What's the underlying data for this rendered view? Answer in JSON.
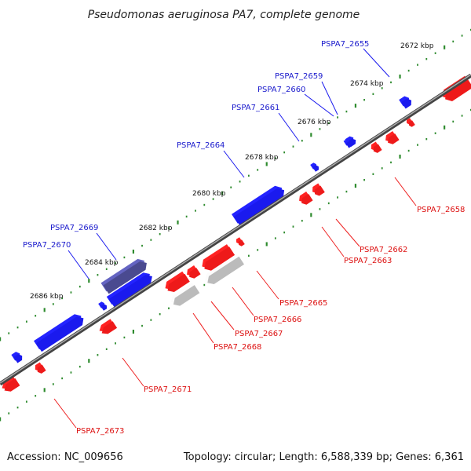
{
  "title": "Pseudomonas aeruginosa PA7, complete genome",
  "footer": {
    "accession": "Accession: NC_009656",
    "summary": "Topology: circular; Length: 6,588,339 bp; Genes: 6,361"
  },
  "colors": {
    "backbone": "#7a7a7a",
    "tick_dots": "#2e8b2e",
    "forward_gene": "#1a1aee",
    "forward_label": "#1a1acc",
    "reverse_gene": "#ee1a1a",
    "reverse_label": "#dd1111",
    "highlight_forward": "#4a4a90",
    "highlight_reverse": "#bbbbbb"
  },
  "scale_ticks": [
    "2672 kbp",
    "2674 kbp",
    "2676 kbp",
    "2678 kbp",
    "2680 kbp",
    "2682 kbp",
    "2684 kbp",
    "2686 kbp"
  ],
  "genes_forward": [
    {
      "label": "PSPA7_2655"
    },
    {
      "label": "PSPA7_2659"
    },
    {
      "label": "PSPA7_2660"
    },
    {
      "label": "PSPA7_2661"
    },
    {
      "label": "PSPA7_2664"
    },
    {
      "label": "PSPA7_2669"
    },
    {
      "label": "PSPA7_2670"
    }
  ],
  "genes_reverse": [
    {
      "label": "PSPA7_2658"
    },
    {
      "label": "PSPA7_2662"
    },
    {
      "label": "PSPA7_2663"
    },
    {
      "label": "PSPA7_2665"
    },
    {
      "label": "PSPA7_2666"
    },
    {
      "label": "PSPA7_2667"
    },
    {
      "label": "PSPA7_2668"
    },
    {
      "label": "PSPA7_2671"
    },
    {
      "label": "PSPA7_2673"
    }
  ]
}
